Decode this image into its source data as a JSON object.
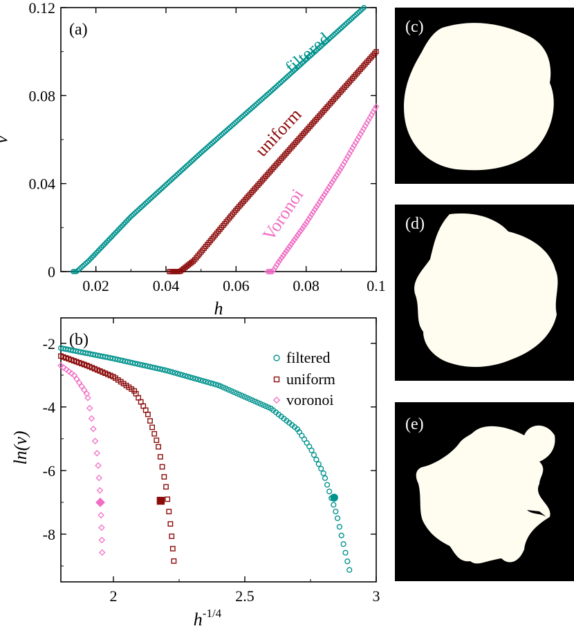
{
  "colors": {
    "filtered": "#00928d",
    "uniform": "#8b0a0a",
    "voronoi": "#f06ec4",
    "blob": "#fffdf0",
    "panel_bg": "#000000"
  },
  "chart_data": [
    {
      "type": "scatter",
      "panel": "(a)",
      "xlabel": "h",
      "ylabel": "v",
      "xlim": [
        0.01,
        0.1
      ],
      "ylim": [
        0,
        0.12
      ],
      "xticks": [
        0.02,
        0.04,
        0.06,
        0.08,
        0.1
      ],
      "xtick_labels": [
        "0.02",
        "0.04",
        "0.06",
        "0.08",
        "0.1"
      ],
      "yticks": [
        0,
        0.04,
        0.08,
        0.12
      ],
      "ytick_labels": [
        "0",
        "0.04",
        "0.08",
        "0.12"
      ],
      "series": [
        {
          "name": "filtered",
          "label": "filtered",
          "marker": "circle",
          "x_range": [
            0.0135,
            0.0965
          ],
          "flat_until": 0.0145,
          "points_xy": [
            [
              0.0135,
              0.0
            ],
            [
              0.0145,
              0.0
            ],
            [
              0.018,
              0.005
            ],
            [
              0.03,
              0.025
            ],
            [
              0.05,
              0.054
            ],
            [
              0.07,
              0.082
            ],
            [
              0.0965,
              0.12
            ]
          ]
        },
        {
          "name": "uniform",
          "label": "uniform",
          "marker": "square",
          "x_range": [
            0.041,
            0.1
          ],
          "flat_until": 0.044,
          "points_xy": [
            [
              0.041,
              0.0
            ],
            [
              0.044,
              0.0
            ],
            [
              0.048,
              0.005
            ],
            [
              0.06,
              0.028
            ],
            [
              0.08,
              0.064
            ],
            [
              0.1,
              0.1
            ]
          ]
        },
        {
          "name": "voronoi",
          "label": "Voronoi",
          "marker": "diamond",
          "x_range": [
            0.069,
            0.1
          ],
          "flat_until": 0.0705,
          "points_xy": [
            [
              0.069,
              0.0
            ],
            [
              0.0705,
              0.0
            ],
            [
              0.072,
              0.004
            ],
            [
              0.08,
              0.022
            ],
            [
              0.09,
              0.047
            ],
            [
              0.1,
              0.075
            ]
          ]
        }
      ]
    },
    {
      "type": "scatter",
      "panel": "(b)",
      "xlabel": "h",
      "xlabel_sup": "-1/4",
      "ylabel": "ln(v)",
      "xlim": [
        1.8,
        3.0
      ],
      "ylim": [
        -9.5,
        -1.2
      ],
      "xticks": [
        2,
        2.5,
        3
      ],
      "xtick_labels": [
        "2",
        "2.5",
        "3"
      ],
      "yticks": [
        -8,
        -6,
        -4,
        -2
      ],
      "ytick_labels": [
        "-8",
        "-6",
        "-4",
        "-2"
      ],
      "legend": {
        "placement": "top-right",
        "entries": [
          "filtered",
          "uniform",
          "voronoi"
        ]
      },
      "series": [
        {
          "name": "filtered",
          "marker": "open-circle",
          "points": [
            [
              1.8,
              -2.15
            ],
            [
              2.0,
              -2.48
            ],
            [
              2.2,
              -2.85
            ],
            [
              2.4,
              -3.32
            ],
            [
              2.6,
              -4.05
            ],
            [
              2.7,
              -4.7
            ],
            [
              2.75,
              -5.3
            ],
            [
              2.8,
              -6.1
            ],
            [
              2.85,
              -7.4
            ],
            [
              2.9,
              -9.2
            ]
          ],
          "highlight": {
            "x": 2.84,
            "y": -6.85
          }
        },
        {
          "name": "uniform",
          "marker": "open-square",
          "points": [
            [
              1.8,
              -2.4
            ],
            [
              1.9,
              -2.7
            ],
            [
              2.0,
              -3.05
            ],
            [
              2.08,
              -3.5
            ],
            [
              2.13,
              -4.2
            ],
            [
              2.17,
              -5.2
            ],
            [
              2.2,
              -6.5
            ],
            [
              2.22,
              -7.9
            ],
            [
              2.23,
              -8.85
            ]
          ],
          "highlight": {
            "x": 2.18,
            "y": -6.95
          }
        },
        {
          "name": "voronoi",
          "marker": "open-diamond",
          "points": [
            [
              1.8,
              -2.7
            ],
            [
              1.85,
              -3.0
            ],
            [
              1.9,
              -3.6
            ],
            [
              1.92,
              -4.5
            ],
            [
              1.94,
              -5.6
            ],
            [
              1.95,
              -6.8
            ],
            [
              1.955,
              -7.8
            ],
            [
              1.958,
              -8.85
            ]
          ],
          "highlight": {
            "x": 1.95,
            "y": -7.0
          }
        }
      ]
    }
  ],
  "blobs": [
    {
      "tag": "(c)"
    },
    {
      "tag": "(d)"
    },
    {
      "tag": "(e)"
    }
  ]
}
